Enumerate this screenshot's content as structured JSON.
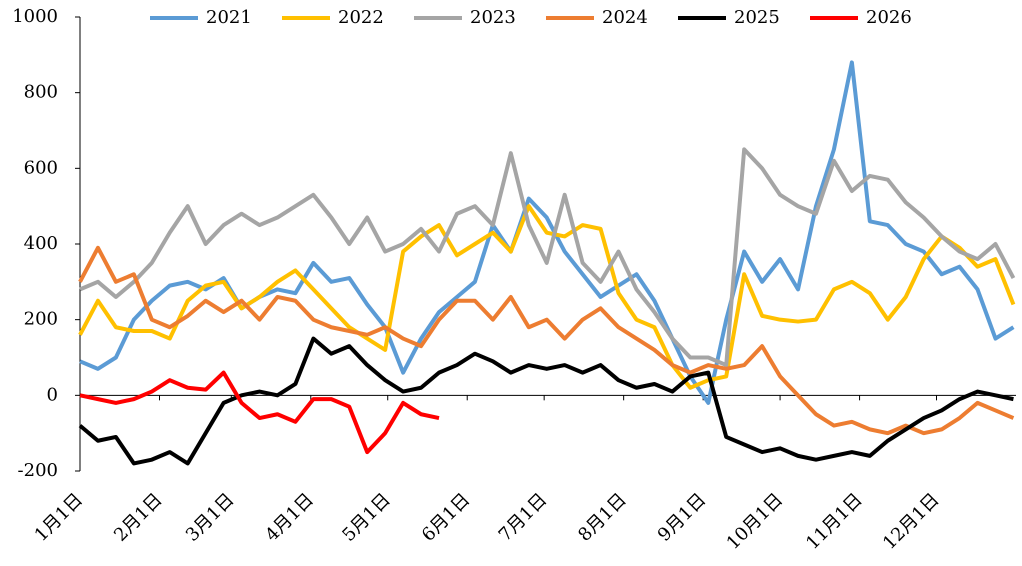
{
  "chart_data": {
    "type": "line",
    "x": [
      0,
      7,
      14,
      21,
      28,
      35,
      42,
      49,
      56,
      63,
      70,
      77,
      84,
      91,
      98,
      105,
      112,
      119,
      126,
      133,
      140,
      147,
      154,
      161,
      168,
      175,
      182,
      189,
      196,
      203,
      210,
      217,
      224,
      231,
      238,
      245,
      252,
      259,
      266,
      273,
      280,
      287,
      294,
      301,
      308,
      315,
      322,
      329,
      336,
      343,
      350,
      357,
      364
    ],
    "xlim": [
      0,
      365
    ],
    "xticks": [
      {
        "value": 0,
        "label": "1月1日"
      },
      {
        "value": 31,
        "label": "2月1日"
      },
      {
        "value": 59,
        "label": "3月1日"
      },
      {
        "value": 90,
        "label": "4月1日"
      },
      {
        "value": 120,
        "label": "5月1日"
      },
      {
        "value": 151,
        "label": "6月1日"
      },
      {
        "value": 181,
        "label": "7月1日"
      },
      {
        "value": 212,
        "label": "8月1日"
      },
      {
        "value": 243,
        "label": "9月1日"
      },
      {
        "value": 273,
        "label": "10月1日"
      },
      {
        "value": 304,
        "label": "11月1日"
      },
      {
        "value": 334,
        "label": "12月1日"
      }
    ],
    "ylim": [
      -200,
      1000
    ],
    "yticks": [
      -200,
      0,
      200,
      400,
      600,
      800,
      1000
    ],
    "legend": "top",
    "series": [
      {
        "name": "2021",
        "color": "#5b9bd5",
        "values": [
          90,
          70,
          100,
          200,
          250,
          290,
          300,
          280,
          310,
          230,
          260,
          280,
          270,
          350,
          300,
          310,
          240,
          180,
          60,
          150,
          220,
          260,
          300,
          450,
          380,
          520,
          470,
          380,
          320,
          260,
          290,
          320,
          250,
          150,
          50,
          -20,
          200,
          380,
          300,
          360,
          280,
          500,
          650,
          880,
          460,
          450,
          400,
          380,
          320,
          340,
          280,
          150,
          180
        ]
      },
      {
        "name": "2022",
        "color": "#ffc000",
        "values": [
          160,
          250,
          180,
          170,
          170,
          150,
          250,
          290,
          300,
          230,
          260,
          300,
          330,
          280,
          230,
          180,
          150,
          120,
          380,
          420,
          450,
          370,
          400,
          430,
          380,
          500,
          430,
          420,
          450,
          440,
          270,
          200,
          180,
          80,
          20,
          40,
          50,
          320,
          210,
          200,
          195,
          200,
          280,
          300,
          270,
          200,
          260,
          360,
          420,
          390,
          340,
          360,
          240
        ]
      },
      {
        "name": "2023",
        "color": "#a5a5a5",
        "values": [
          280,
          300,
          260,
          300,
          350,
          430,
          500,
          400,
          450,
          480,
          450,
          470,
          500,
          530,
          470,
          400,
          470,
          380,
          400,
          440,
          380,
          480,
          500,
          450,
          640,
          450,
          350,
          530,
          350,
          300,
          380,
          280,
          220,
          150,
          100,
          100,
          80,
          650,
          600,
          530,
          500,
          480,
          620,
          540,
          580,
          570,
          510,
          470,
          420,
          380,
          360,
          400,
          310
        ]
      },
      {
        "name": "2024",
        "color": "#ed7d31",
        "values": [
          300,
          390,
          300,
          320,
          200,
          180,
          210,
          250,
          220,
          250,
          200,
          260,
          250,
          200,
          180,
          170,
          160,
          180,
          150,
          130,
          200,
          250,
          250,
          200,
          260,
          180,
          200,
          150,
          200,
          230,
          180,
          150,
          120,
          80,
          60,
          80,
          70,
          80,
          130,
          50,
          0,
          -50,
          -80,
          -70,
          -90,
          -100,
          -80,
          -100,
          -90,
          -60,
          -20,
          -40,
          -60
        ]
      },
      {
        "name": "2025",
        "color": "#000000",
        "values": [
          -80,
          -120,
          -110,
          -180,
          -170,
          -150,
          -180,
          -100,
          -20,
          0,
          10,
          0,
          30,
          150,
          110,
          130,
          80,
          40,
          10,
          20,
          60,
          80,
          110,
          90,
          60,
          80,
          70,
          80,
          60,
          80,
          40,
          20,
          30,
          10,
          50,
          60,
          -110,
          -130,
          -150,
          -140,
          -160,
          -170,
          -160,
          -150,
          -160,
          -120,
          -90,
          -60,
          -40,
          -10,
          10,
          0,
          -10
        ]
      },
      {
        "name": "2026",
        "color": "#ff0000",
        "values": [
          0,
          -10,
          -20,
          -10,
          10,
          40,
          20,
          15,
          60,
          -20,
          -60,
          -50,
          -70,
          -10,
          -10,
          -30,
          -150,
          -100,
          -20,
          -50,
          -60,
          null,
          null,
          null,
          null,
          null,
          null,
          null,
          null,
          null,
          null,
          null,
          null,
          null,
          null,
          null,
          null,
          null,
          null,
          null,
          null,
          null,
          null,
          null,
          null,
          null,
          null,
          null,
          null,
          null,
          null,
          null,
          null
        ]
      }
    ]
  }
}
